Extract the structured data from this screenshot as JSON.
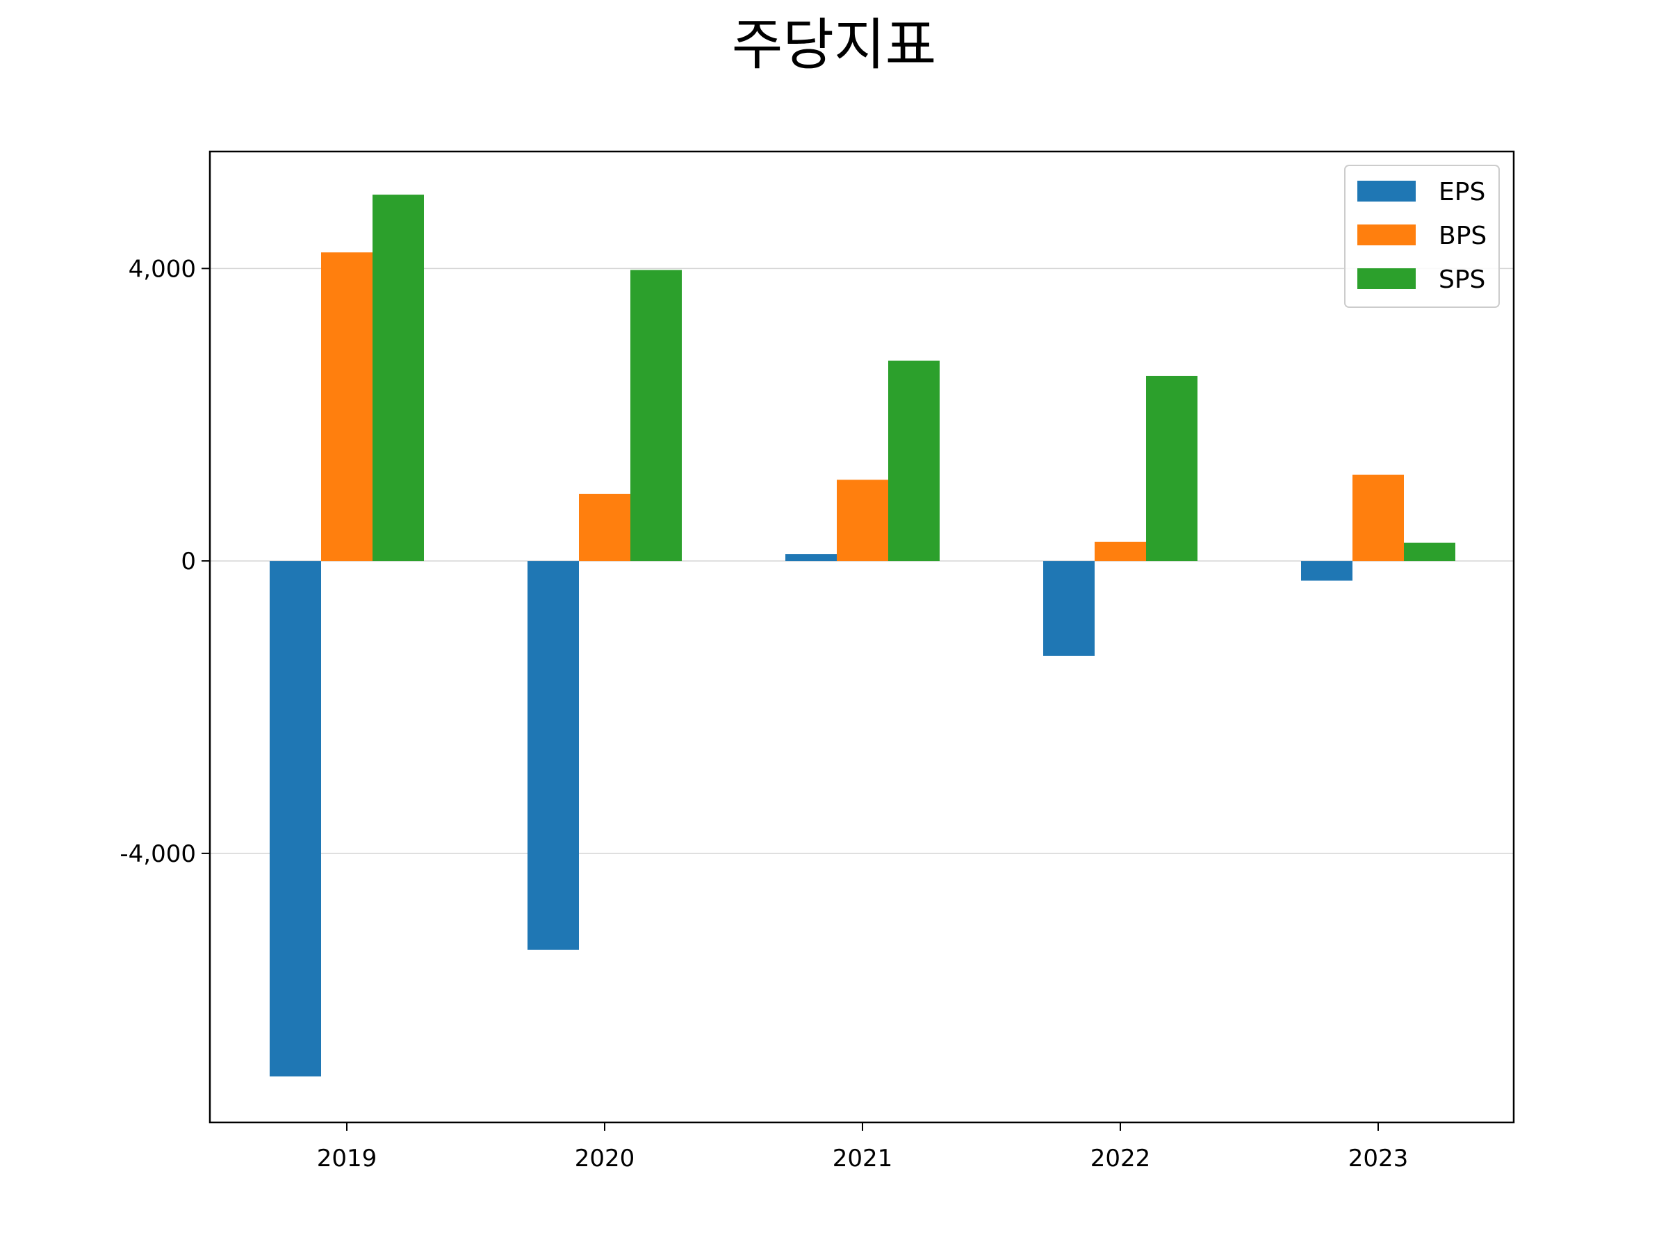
{
  "chart_data": {
    "type": "bar",
    "title": "주당지표",
    "xlabel": "",
    "ylabel": "",
    "categories": [
      "2019",
      "2020",
      "2021",
      "2022",
      "2023"
    ],
    "series": [
      {
        "name": "EPS",
        "color": "#1f77b4",
        "values": [
          -7050,
          -5320,
          95,
          -1300,
          -270
        ]
      },
      {
        "name": "BPS",
        "color": "#ff7f0e",
        "values": [
          4220,
          915,
          1110,
          260,
          1180
        ]
      },
      {
        "name": "SPS",
        "color": "#2ca02c",
        "values": [
          5010,
          3980,
          2740,
          2530,
          250
        ]
      }
    ],
    "ylim": [
      -7680,
      5600
    ],
    "yticks": [
      -4000,
      0,
      4000
    ],
    "ytick_labels": [
      "-4,000",
      "0",
      "4,000"
    ],
    "grid": "horizontal",
    "legend_position": "top-right"
  }
}
